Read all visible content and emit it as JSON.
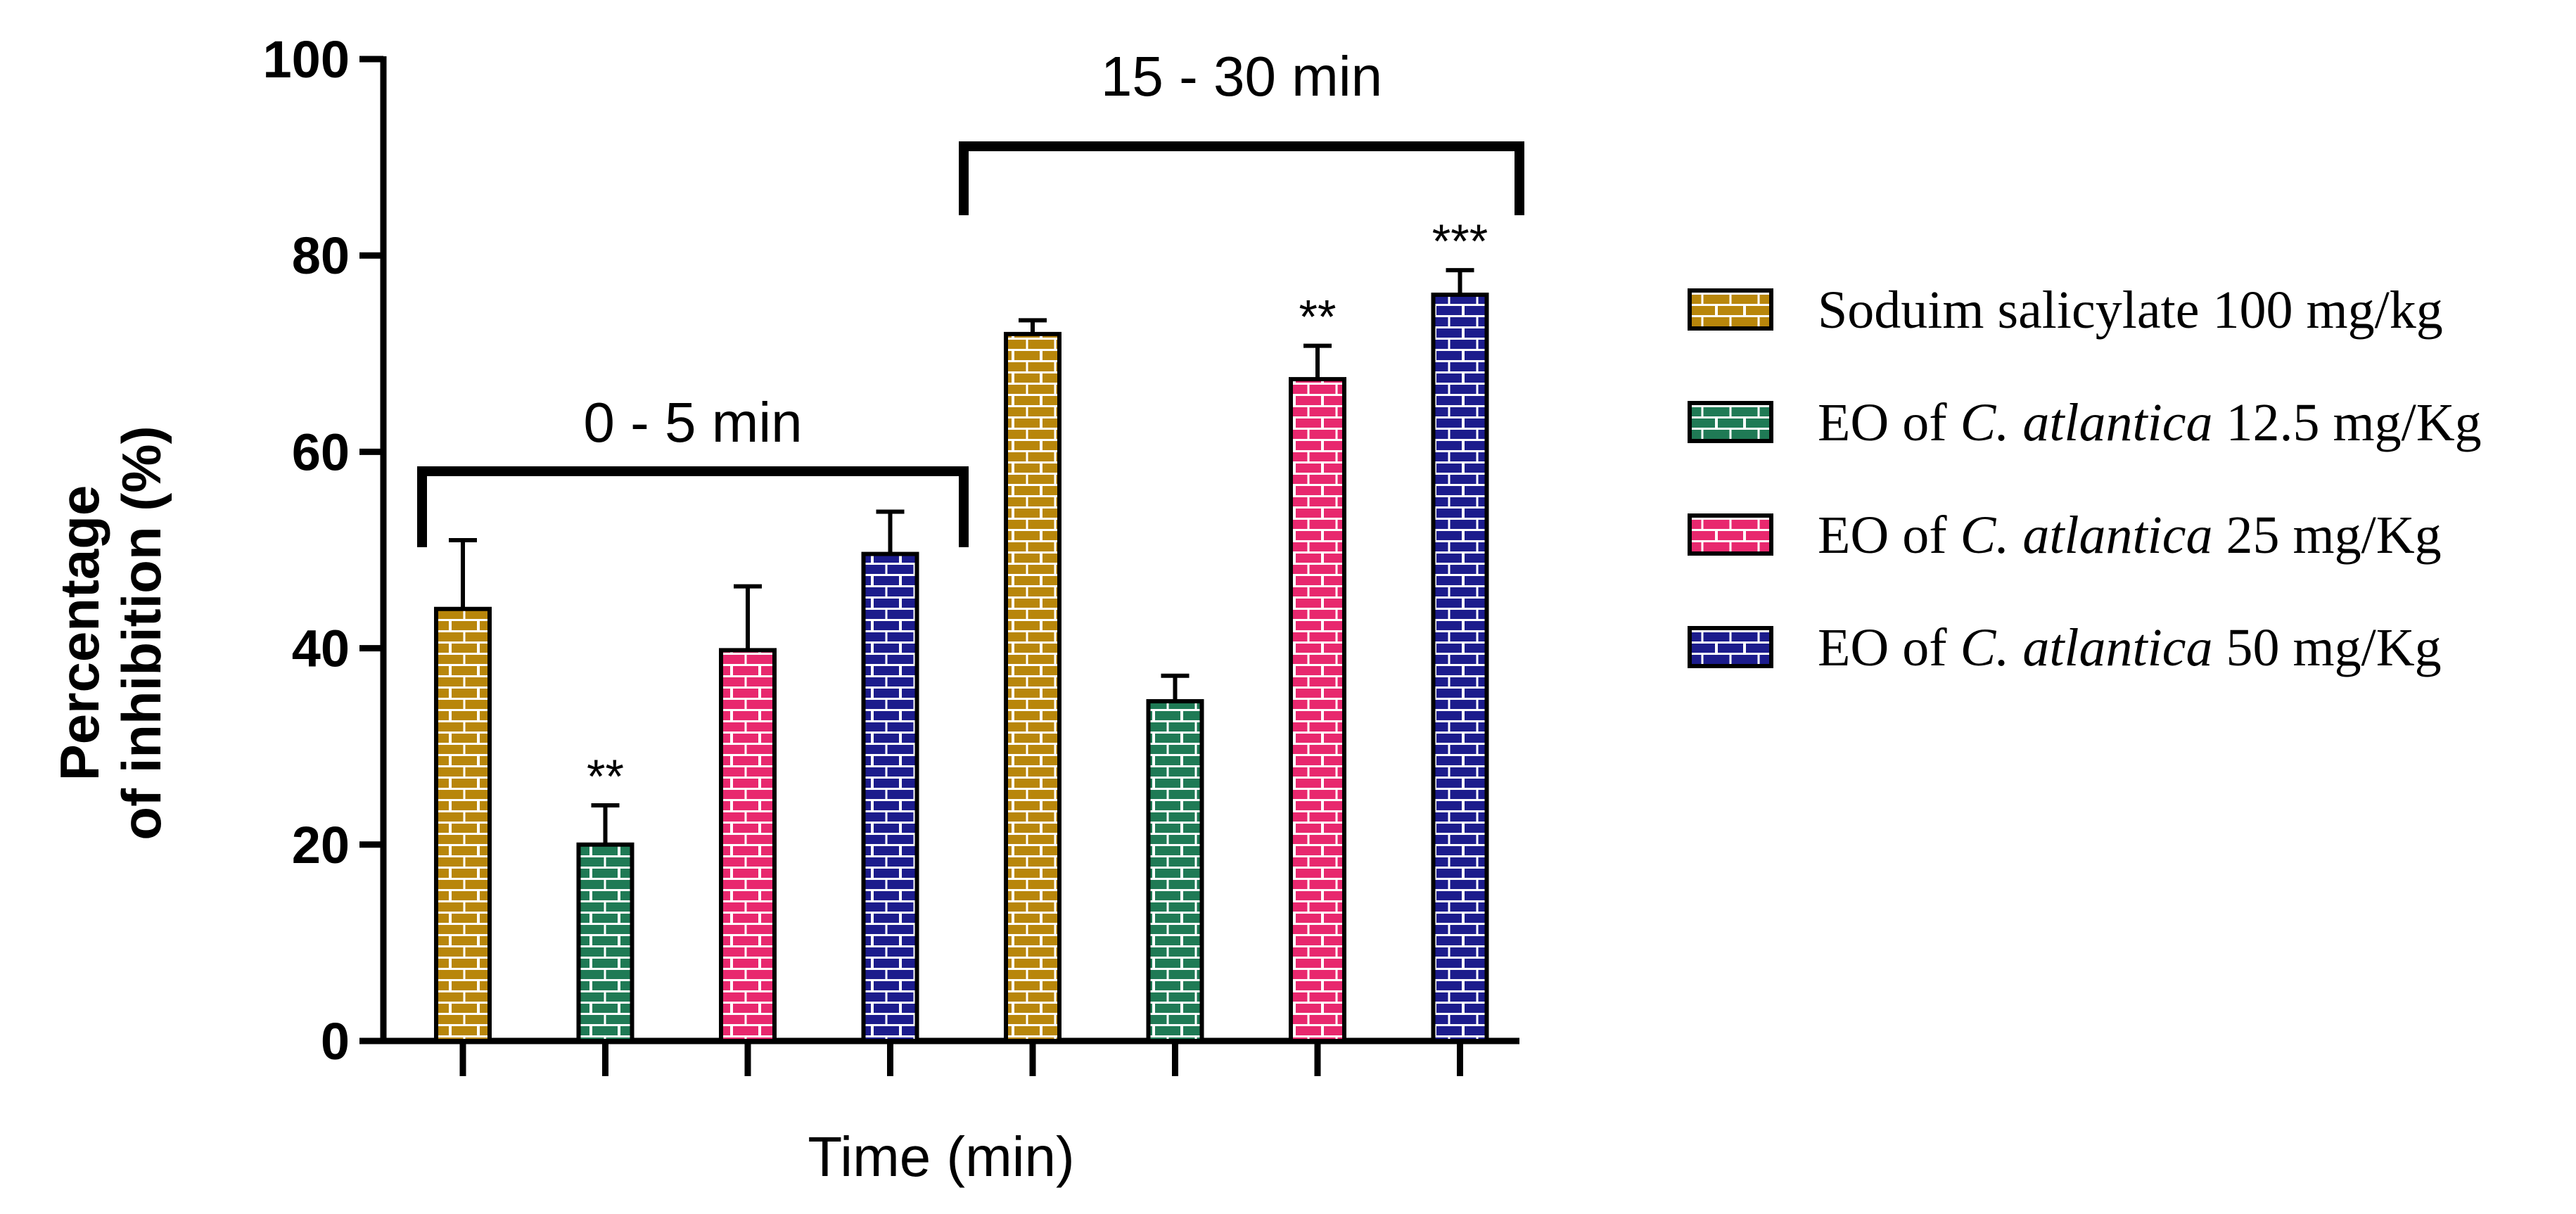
{
  "chart_data": {
    "type": "bar",
    "xlabel": "Time (min)",
    "ylabel": [
      "Percentage",
      "of inhibition (%)"
    ],
    "ylim": [
      0,
      100
    ],
    "yticks": [
      0,
      20,
      40,
      60,
      80,
      100
    ],
    "groups": [
      {
        "label": "0 - 5 min",
        "bar_indices": [
          0,
          1,
          2,
          3
        ]
      },
      {
        "label": "15 - 30 min",
        "bar_indices": [
          4,
          5,
          6,
          7
        ]
      }
    ],
    "series": [
      {
        "name": "Soduim salicylate 100 mg/kg",
        "color": "#b8860b",
        "name_plain": "Soduim salicylate 100 mg/kg"
      },
      {
        "name": "EO of C. atlantica 12.5 mg/Kg",
        "color": "#1f7a55",
        "prefix": "EO of ",
        "italic": "C. atlantica",
        "suffix": " 12.5 mg/Kg"
      },
      {
        "name": "EO of C. atlantica 25 mg/Kg",
        "color": "#e8286e",
        "prefix": "EO of ",
        "italic": "C. atlantica",
        "suffix": " 25 mg/Kg"
      },
      {
        "name": "EO of C. atlantica 50 mg/Kg",
        "color": "#1c1c8c",
        "prefix": "EO of ",
        "italic": "C. atlantica",
        "suffix": " 50 mg/Kg"
      }
    ],
    "bars": [
      {
        "series": 0,
        "value": 44,
        "error": 7,
        "sig": ""
      },
      {
        "series": 1,
        "value": 20,
        "error": 4,
        "sig": "**"
      },
      {
        "series": 2,
        "value": 39.8,
        "error": 6.5,
        "sig": ""
      },
      {
        "series": 3,
        "value": 49.6,
        "error": 4.3,
        "sig": ""
      },
      {
        "series": 0,
        "value": 72,
        "error": 1.4,
        "sig": ""
      },
      {
        "series": 1,
        "value": 34.6,
        "error": 2.6,
        "sig": ""
      },
      {
        "series": 2,
        "value": 67.4,
        "error": 3.4,
        "sig": "**"
      },
      {
        "series": 3,
        "value": 76,
        "error": 2.5,
        "sig": "***"
      }
    ],
    "legend_position": "right"
  }
}
